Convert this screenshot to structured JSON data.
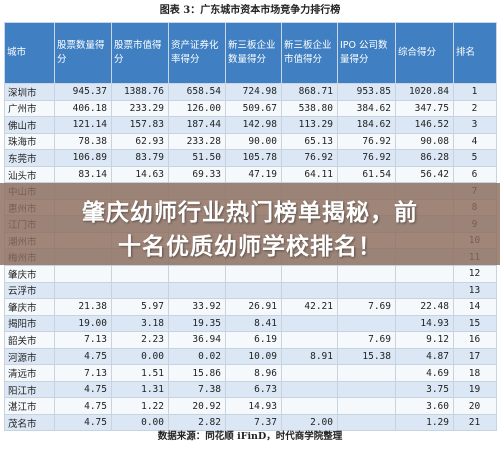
{
  "caption": "图表 3：广东城市资本市场竞争力排行榜",
  "headers": [
    "城市",
    "股票数量得分",
    "股票市值得分",
    "资产证券化率得分",
    "新三板企业数量得分",
    "新三板企业市值得分",
    "IPO 公司数量得分",
    "综合得分",
    "排名"
  ],
  "rows": [
    [
      "深圳市",
      "945.37",
      "1388.76",
      "658.54",
      "724.98",
      "868.71",
      "953.85",
      "1020.84",
      "1"
    ],
    [
      "广州市",
      "406.18",
      "233.29",
      "126.00",
      "509.67",
      "538.80",
      "384.62",
      "347.75",
      "2"
    ],
    [
      "佛山市",
      "121.14",
      "157.83",
      "187.44",
      "142.98",
      "113.29",
      "184.62",
      "146.52",
      "3"
    ],
    [
      "珠海市",
      "78.38",
      "62.93",
      "233.28",
      "90.00",
      "65.13",
      "76.92",
      "90.08",
      "4"
    ],
    [
      "东莞市",
      "106.89",
      "83.79",
      "51.50",
      "105.78",
      "76.92",
      "76.92",
      "86.28",
      "5"
    ],
    [
      "汕头市",
      "83.14",
      "14.63",
      "69.33",
      "47.19",
      "64.11",
      "61.54",
      "56.42",
      "6"
    ],
    [
      "中山市",
      "",
      "",
      "",
      "",
      "",
      "",
      "",
      "7"
    ],
    [
      "惠州市",
      "",
      "",
      "",
      "",
      "",
      "",
      "",
      "8"
    ],
    [
      "江门市",
      "",
      "",
      "",
      "",
      "",
      "",
      "",
      "9"
    ],
    [
      "潮州市",
      "",
      "",
      "",
      "",
      "",
      "",
      "",
      "10"
    ],
    [
      "梅州市",
      "",
      "",
      "",
      "",
      "",
      "",
      "",
      "11"
    ],
    [
      "肇庆市",
      "",
      "",
      "",
      "",
      "",
      "",
      "",
      "12"
    ],
    [
      "云浮市",
      "",
      "",
      "",
      "",
      "",
      "",
      "",
      "13"
    ],
    [
      "肇庆市",
      "21.38",
      "5.97",
      "33.92",
      "26.91",
      "42.21",
      "7.69",
      "22.48",
      "14"
    ],
    [
      "揭阳市",
      "19.00",
      "3.18",
      "19.35",
      "8.41",
      "",
      "",
      "14.93",
      "15"
    ],
    [
      "韶关市",
      "7.13",
      "2.23",
      "36.94",
      "6.19",
      "",
      "7.69",
      "9.12",
      "16"
    ],
    [
      "河源市",
      "4.75",
      "0.00",
      "0.02",
      "10.09",
      "8.91",
      "15.38",
      "4.87",
      "17"
    ],
    [
      "清远市",
      "7.13",
      "1.51",
      "15.86",
      "8.96",
      "",
      "",
      "4.69",
      "18"
    ],
    [
      "阳江市",
      "4.75",
      "1.31",
      "7.38",
      "6.73",
      "",
      "",
      "3.75",
      "19"
    ],
    [
      "湛江市",
      "4.75",
      "1.22",
      "20.92",
      "14.93",
      "",
      "",
      "3.60",
      "20"
    ],
    [
      "茂名市",
      "4.75",
      "0.00",
      "2.82",
      "7.37",
      "2.00",
      "",
      "1.29",
      "21"
    ]
  ],
  "source": "数据来源：同花顺 iFinD，时代商学院整理",
  "banner": {
    "line1": "肇庆幼师行业热门榜单揭秘，前",
    "line2": "十名优质幼师学校排名！"
  }
}
